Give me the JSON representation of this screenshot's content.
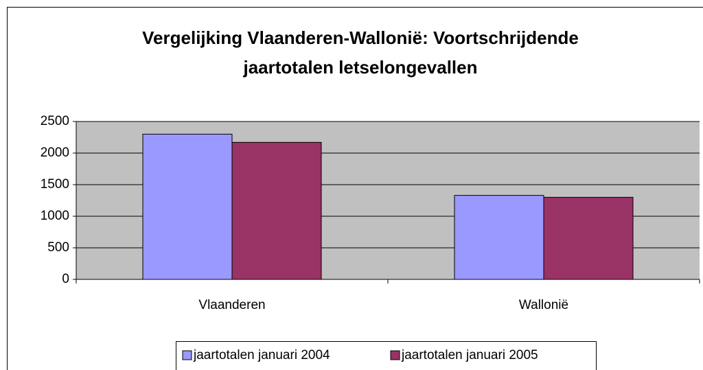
{
  "chart_data": {
    "type": "bar",
    "title": [
      "Vergelijking Vlaanderen-Wallonië: Voortschrijdende",
      "jaartotalen letselongevallen"
    ],
    "categories": [
      "Vlaanderen",
      "Wallonië"
    ],
    "series": [
      {
        "name": "jaartotalen januari 2004",
        "color": "#9999ff",
        "values": [
          2300,
          1330
        ]
      },
      {
        "name": "jaartotalen januari 2005",
        "color": "#993366",
        "values": [
          2170,
          1300
        ]
      }
    ],
    "ylim": [
      0,
      2500
    ],
    "yticks": [
      0,
      500,
      1000,
      1500,
      2000,
      2500
    ],
    "grid": true,
    "legend": "bottom"
  }
}
